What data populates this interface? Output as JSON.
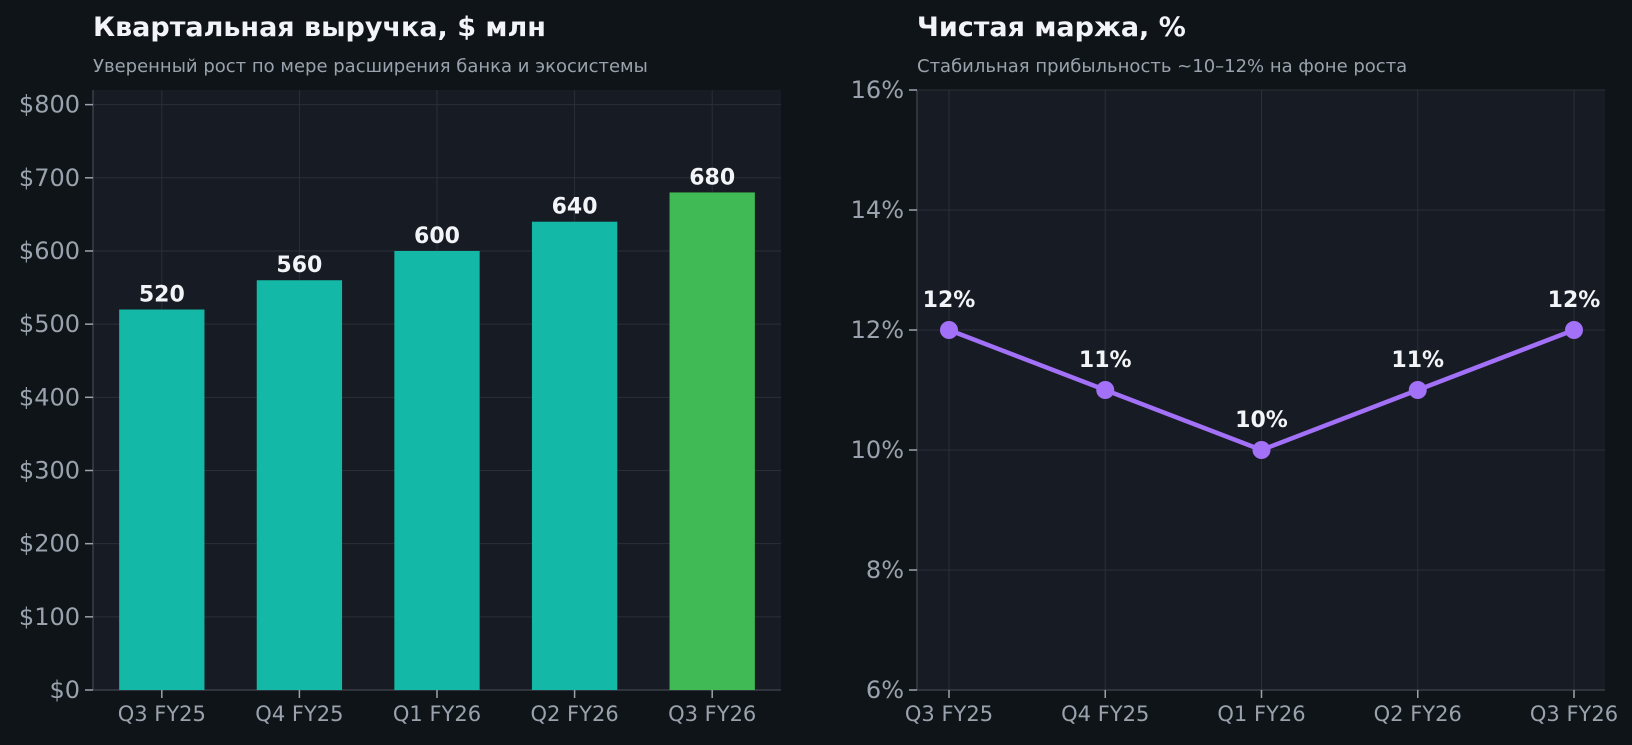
{
  "colors": {
    "page_background": "#0f1418",
    "plot_background": "#171b23",
    "grid": "#2a2f38",
    "axis": "#3a3f48",
    "text_primary": "#f2f4f7",
    "text_secondary": "#9aa3ad",
    "bar_default": "#14b8a6",
    "bar_highlight": "#3fba54",
    "line": "#a371f7"
  },
  "chart_data": [
    {
      "type": "bar",
      "title": "Квартальная выручка, $ млн",
      "subtitle": "Уверенный рост по мере расширения банка и экосистемы",
      "categories": [
        "Q3 FY25",
        "Q4 FY25",
        "Q1 FY26",
        "Q2 FY26",
        "Q3 FY26"
      ],
      "values": [
        520,
        560,
        600,
        640,
        680
      ],
      "data_labels": [
        "520",
        "560",
        "600",
        "640",
        "680"
      ],
      "highlight_index": 4,
      "ylim": [
        0,
        820
      ],
      "yticks": [
        0,
        100,
        200,
        300,
        400,
        500,
        600,
        700,
        800
      ],
      "ytick_labels": [
        "$0",
        "$100",
        "$200",
        "$300",
        "$400",
        "$500",
        "$600",
        "$700",
        "$800"
      ],
      "grid": true,
      "legend": "none"
    },
    {
      "type": "line",
      "title": "Чистая маржа, %",
      "subtitle": "Стабильная прибыльность ~10–12% на фоне роста",
      "categories": [
        "Q3 FY25",
        "Q4 FY25",
        "Q1 FY26",
        "Q2 FY26",
        "Q3 FY26"
      ],
      "values": [
        12,
        11,
        10,
        11,
        12
      ],
      "data_labels": [
        "12%",
        "11%",
        "10%",
        "11%",
        "12%"
      ],
      "ylim": [
        6,
        16
      ],
      "yticks": [
        6,
        8,
        10,
        12,
        14,
        16
      ],
      "ytick_labels": [
        "6%",
        "8%",
        "10%",
        "12%",
        "14%",
        "16%"
      ],
      "grid": true,
      "legend": "none"
    }
  ]
}
